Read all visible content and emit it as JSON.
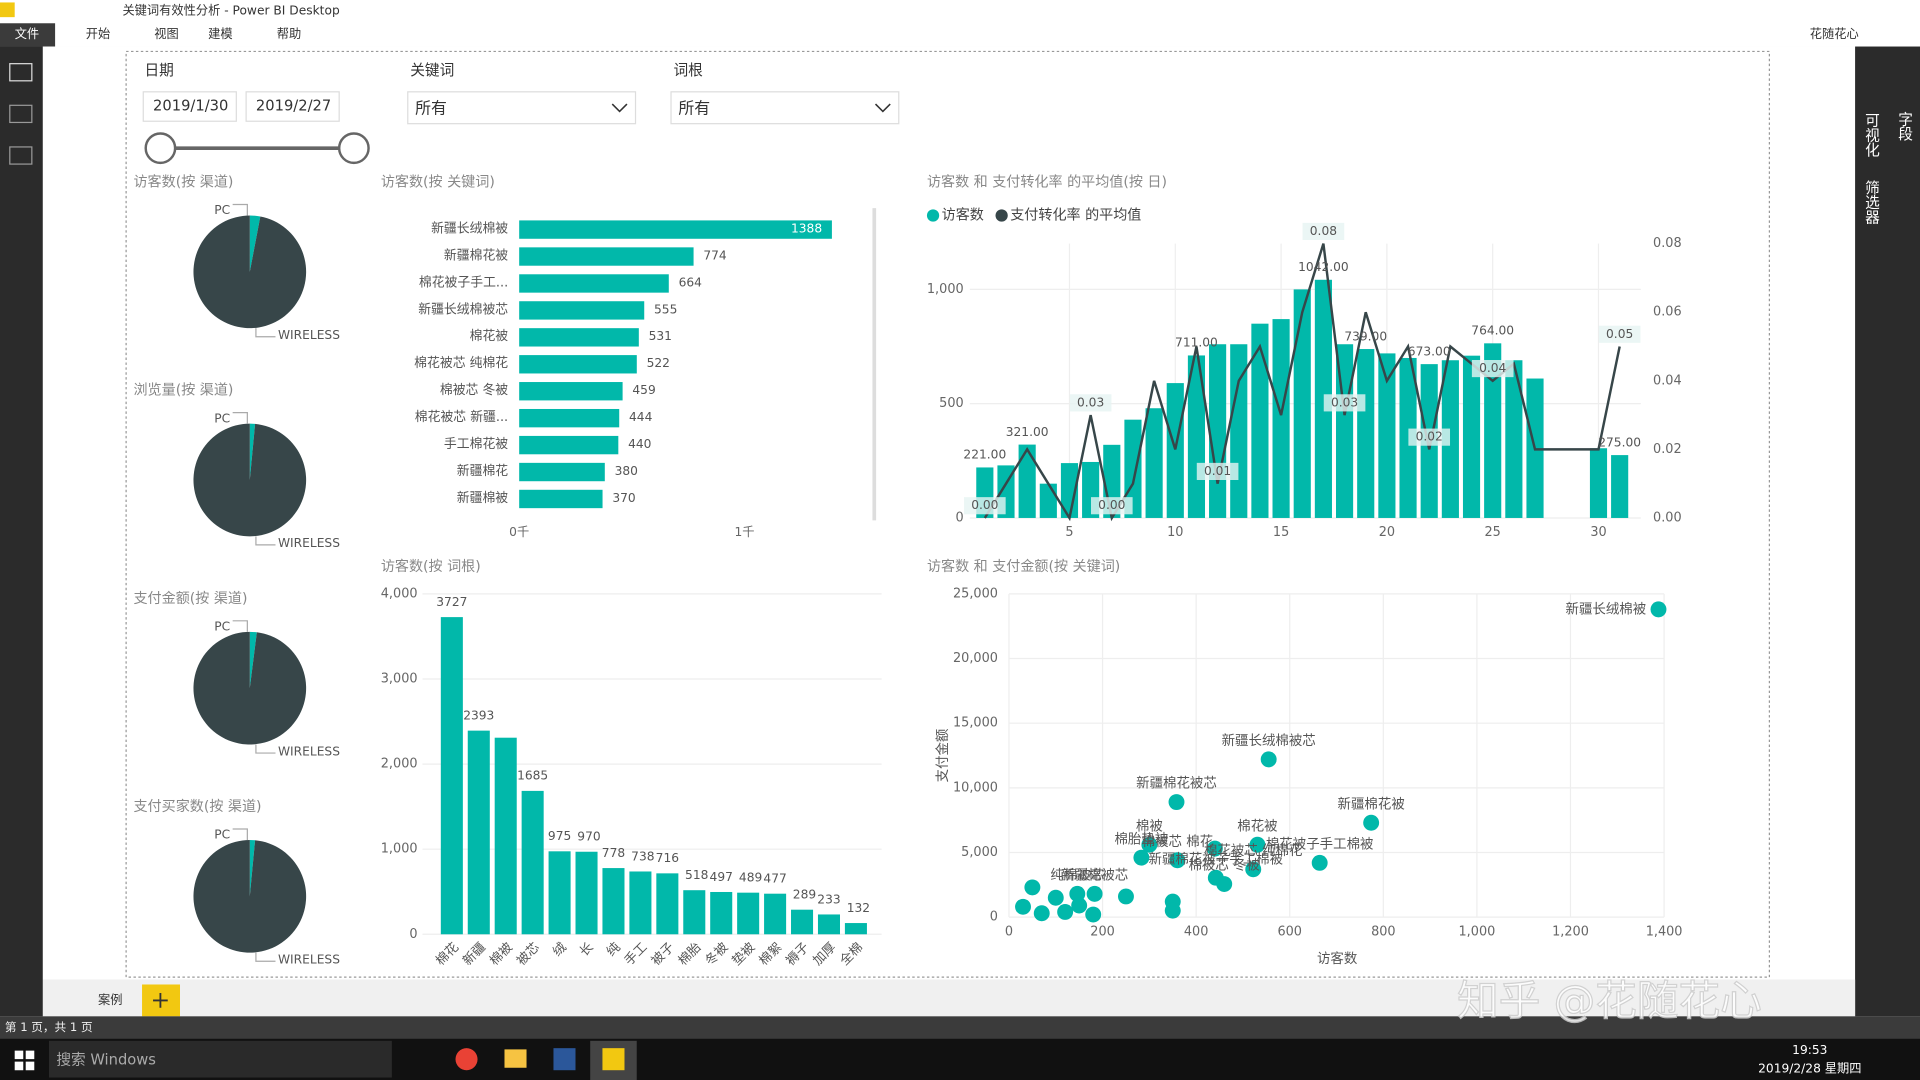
{
  "window": {
    "title": "关键词有效性分析 - Power BI Desktop",
    "user": "花随花心"
  },
  "menu": [
    "文件",
    "开始",
    "视图",
    "建模",
    "帮助"
  ],
  "side_panel": [
    "可视化",
    "筛选器",
    "字段"
  ],
  "filters": {
    "date": {
      "label": "日期",
      "start": "2019/1/30",
      "end": "2019/2/27"
    },
    "keyword": {
      "label": "关键词",
      "value": "所有"
    },
    "root": {
      "label": "词根",
      "value": "所有"
    }
  },
  "pies": [
    {
      "type": "pie",
      "title": "访客数(按 渠道)",
      "labels": [
        "PC",
        "WIRELESS"
      ],
      "values": [
        3,
        97
      ],
      "colors": [
        "#01b8aa",
        "#374649"
      ]
    },
    {
      "type": "pie",
      "title": "浏览量(按 渠道)",
      "labels": [
        "PC",
        "WIRELESS"
      ],
      "values": [
        1.5,
        98.5
      ],
      "colors": [
        "#01b8aa",
        "#374649"
      ]
    },
    {
      "type": "pie",
      "title": "支付金额(按 渠道)",
      "labels": [
        "PC",
        "WIRELESS"
      ],
      "values": [
        2,
        98
      ],
      "colors": [
        "#01b8aa",
        "#374649"
      ]
    },
    {
      "type": "pie",
      "title": "支付买家数(按 渠道)",
      "labels": [
        "PC",
        "WIRELESS"
      ],
      "values": [
        1.5,
        98.5
      ],
      "colors": [
        "#01b8aa",
        "#374649"
      ]
    }
  ],
  "keyword_bar": {
    "type": "hbar",
    "title": "访客数(按 关键词)",
    "color": "#01b8aa",
    "categories": [
      "新疆长绒棉被",
      "新疆棉花被",
      "棉花被子手工...",
      "新疆长绒棉被芯",
      "棉花被",
      "棉花被芯 纯棉花",
      "棉被芯 冬被",
      "棉花被芯 新疆...",
      "手工棉花被",
      "新疆棉花",
      "新疆棉被"
    ],
    "values": [
      1388,
      774,
      664,
      555,
      531,
      522,
      459,
      444,
      440,
      380,
      370
    ],
    "xlim": [
      0,
      1400
    ],
    "xticks": [
      {
        "value": 0,
        "label": "0千"
      },
      {
        "value": 1000,
        "label": "1千"
      }
    ]
  },
  "combo": {
    "type": "combo",
    "title": "访客数 和 支付转化率 的平均值(按 日)",
    "x": [
      1,
      2,
      3,
      4,
      5,
      6,
      7,
      8,
      9,
      10,
      11,
      12,
      13,
      14,
      15,
      16,
      17,
      18,
      19,
      20,
      21,
      22,
      23,
      24,
      25,
      26,
      27,
      30,
      31
    ],
    "xlim": [
      0,
      32
    ],
    "xticks": [
      5,
      10,
      15,
      20,
      25,
      30
    ],
    "ylim": [
      0,
      1200
    ],
    "yticks": [
      0,
      500,
      {
        "value": 1000,
        "label": "1,000"
      }
    ],
    "y2lim": [
      0,
      0.08
    ],
    "y2ticks": [
      {
        "value": 0,
        "label": "0.00"
      },
      {
        "value": 0.02,
        "label": "0.02"
      },
      {
        "value": 0.04,
        "label": "0.04"
      },
      {
        "value": 0.06,
        "label": "0.06"
      },
      {
        "value": 0.08,
        "label": "0.08"
      }
    ],
    "series": [
      {
        "name": "访客数",
        "color": "#01b8aa",
        "kind": "bar",
        "values": [
          221,
          230,
          321,
          150,
          240,
          245,
          320,
          430,
          480,
          590,
          711,
          760,
          760,
          850,
          870,
          1000,
          1042,
          760,
          739,
          720,
          700,
          673,
          690,
          710,
          764,
          690,
          610,
          305,
          275
        ],
        "value_labels": [
          "221.00",
          null,
          "321.00",
          null,
          null,
          null,
          null,
          null,
          null,
          null,
          "711.00",
          null,
          null,
          null,
          null,
          null,
          "1042.00",
          null,
          "739.00",
          null,
          null,
          "673.00",
          null,
          null,
          "764.00",
          null,
          null,
          null,
          "275.00"
        ]
      },
      {
        "name": "支付转化率 的平均值",
        "color": "#374649",
        "kind": "line",
        "axis": "y2",
        "values": [
          0.0,
          0.01,
          0.02,
          0.01,
          0.0,
          0.03,
          0.0,
          0.01,
          0.04,
          0.02,
          0.05,
          0.01,
          0.04,
          0.05,
          0.03,
          0.06,
          0.08,
          0.03,
          0.06,
          0.04,
          0.05,
          0.02,
          0.05,
          0.045,
          0.04,
          0.045,
          0.02,
          0.02,
          0.05
        ],
        "value_labels": [
          "0.00",
          null,
          null,
          null,
          null,
          "0.03",
          "0.00",
          null,
          null,
          null,
          null,
          "0.01",
          null,
          null,
          null,
          null,
          "0.08",
          "0.03",
          null,
          null,
          null,
          "0.02",
          null,
          null,
          "0.04",
          null,
          null,
          null,
          "0.05"
        ]
      }
    ]
  },
  "root_bar": {
    "type": "bar",
    "title": "访客数(按 词根)",
    "color": "#01b8aa",
    "categories": [
      "棉花",
      "新疆",
      "棉被",
      "被芯",
      "绒",
      "长",
      "纯",
      "手工",
      "被子",
      "棉胎",
      "冬被",
      "垫被",
      "棉絮",
      "褥子",
      "加厚",
      "全棉"
    ],
    "values": [
      3727,
      2393,
      2310,
      1685,
      975,
      970,
      778,
      738,
      716,
      518,
      497,
      489,
      477,
      289,
      233,
      132
    ],
    "value_labels": [
      "3727",
      "2393",
      null,
      "1685",
      "975",
      "970",
      "778",
      "738",
      "716",
      "518",
      "497",
      "489",
      "477",
      "289",
      "233",
      "132"
    ],
    "ylim": [
      0,
      4000
    ],
    "yticks": [
      0,
      {
        "value": 1000,
        "label": "1,000"
      },
      {
        "value": 2000,
        "label": "2,000"
      },
      {
        "value": 3000,
        "label": "3,000"
      },
      {
        "value": 4000,
        "label": "4,000"
      }
    ]
  },
  "scatter": {
    "type": "scatter",
    "title": "访客数 和 支付金额(按 关键词)",
    "color": "#01b8aa",
    "x_label": "访客数",
    "y_label": "支付金额",
    "x": [
      1388,
      555,
      358,
      774,
      300,
      531,
      440,
      283,
      360,
      522,
      664,
      442,
      460,
      146,
      183,
      350,
      350,
      100,
      50,
      30,
      150,
      250,
      120,
      70,
      180
    ],
    "y": [
      23800,
      12200,
      8900,
      7300,
      5600,
      5600,
      5300,
      4600,
      4400,
      3700,
      4200,
      3050,
      2560,
      1800,
      1800,
      1200,
      500,
      1500,
      2300,
      800,
      900,
      1600,
      400,
      300,
      200
    ],
    "labels": [
      "新疆长绒棉被",
      "新疆长绒棉被芯",
      "新疆棉花被芯",
      "新疆棉花被",
      "棉被",
      "棉花被",
      null,
      "棉胎垫被",
      "棉被芯 棉花",
      "棉花被芯 纯棉花",
      "棉花被子手工棉被",
      "新疆棉花被子手工棉被",
      "棉被芯 冬被",
      "纯棉被芯",
      "新疆棉被芯",
      null,
      null,
      null,
      null,
      null,
      null,
      null,
      null,
      null,
      null
    ],
    "xlim": [
      0,
      1400
    ],
    "xticks": [
      0,
      200,
      400,
      600,
      800,
      {
        "value": 1000,
        "label": "1,000"
      },
      {
        "value": 1200,
        "label": "1,200"
      },
      {
        "value": 1400,
        "label": "1,400"
      }
    ],
    "ylim": [
      0,
      25000
    ],
    "yticks": [
      0,
      {
        "value": 5000,
        "label": "5,000"
      },
      {
        "value": 10000,
        "label": "10,000"
      },
      {
        "value": 15000,
        "label": "15,000"
      },
      {
        "value": 20000,
        "label": "20,000"
      },
      {
        "value": 25000,
        "label": "25,000"
      }
    ]
  },
  "tabs": [
    "案例"
  ],
  "status": "第 1 页，共 1 页",
  "taskbar": {
    "search": "搜索 Windows",
    "time": "19:53",
    "date": "2019/2/28 星期四"
  },
  "watermark": "知乎 @花随花心"
}
